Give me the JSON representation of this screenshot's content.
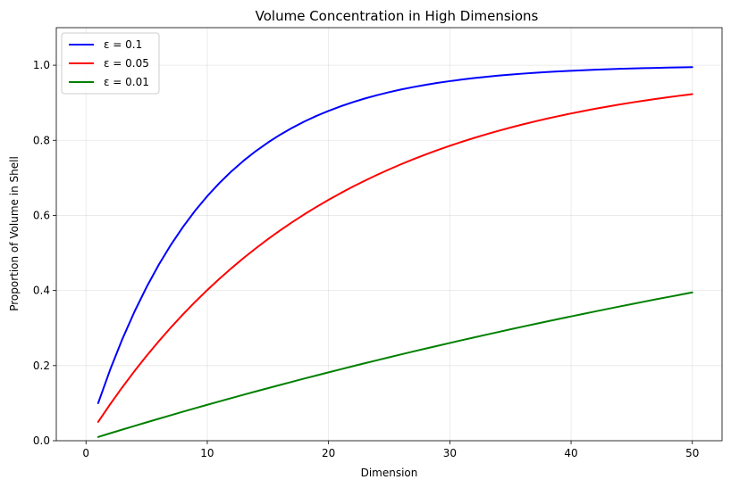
{
  "chart_data": {
    "type": "line",
    "title": "Volume Concentration in High Dimensions",
    "xlabel": "Dimension",
    "ylabel": "Proportion of Volume in Shell",
    "xlim": [
      -2.45,
      52.45
    ],
    "ylim": [
      0,
      1.1
    ],
    "x_ticks": [
      0,
      10,
      20,
      30,
      40,
      50
    ],
    "y_ticks": [
      0.0,
      0.2,
      0.4,
      0.6,
      0.8,
      1.0
    ],
    "x_tick_labels": [
      "0",
      "10",
      "20",
      "30",
      "40",
      "50"
    ],
    "y_tick_labels": [
      "0.0",
      "0.2",
      "0.4",
      "0.6",
      "0.8",
      "1.0"
    ],
    "grid": true,
    "legend_position": "top-left",
    "x": [
      1,
      2,
      3,
      4,
      5,
      6,
      7,
      8,
      9,
      10,
      11,
      12,
      13,
      14,
      15,
      16,
      17,
      18,
      19,
      20,
      21,
      22,
      23,
      24,
      25,
      26,
      27,
      28,
      29,
      30,
      31,
      32,
      33,
      34,
      35,
      36,
      37,
      38,
      39,
      40,
      41,
      42,
      43,
      44,
      45,
      46,
      47,
      48,
      49,
      50
    ],
    "series": [
      {
        "name": "ε = 0.1",
        "color": "#0000ff",
        "values": [
          0.1,
          0.19,
          0.271,
          0.3439,
          0.4095,
          0.4686,
          0.5217,
          0.5695,
          0.6126,
          0.6513,
          0.6862,
          0.7176,
          0.7458,
          0.7712,
          0.7941,
          0.8147,
          0.8332,
          0.8499,
          0.8649,
          0.8784,
          0.8906,
          0.9015,
          0.9114,
          0.9202,
          0.9282,
          0.9354,
          0.9419,
          0.9477,
          0.9529,
          0.9576,
          0.9618,
          0.9657,
          0.9691,
          0.9722,
          0.975,
          0.9775,
          0.9797,
          0.9818,
          0.9836,
          0.9852,
          0.9867,
          0.988,
          0.9892,
          0.9903,
          0.9913,
          0.9921,
          0.9929,
          0.9936,
          0.9943,
          0.9948
        ]
      },
      {
        "name": "ε = 0.05",
        "color": "#ff0000",
        "values": [
          0.05,
          0.0975,
          0.1426,
          0.1855,
          0.2262,
          0.2649,
          0.3017,
          0.3366,
          0.3698,
          0.4013,
          0.4312,
          0.4596,
          0.4867,
          0.5123,
          0.5367,
          0.5599,
          0.5819,
          0.6028,
          0.6226,
          0.6415,
          0.6594,
          0.6765,
          0.6926,
          0.708,
          0.7226,
          0.7365,
          0.7497,
          0.7622,
          0.7741,
          0.7854,
          0.7961,
          0.8063,
          0.816,
          0.8252,
          0.8339,
          0.8422,
          0.8501,
          0.8576,
          0.8647,
          0.8715,
          0.8779,
          0.884,
          0.8898,
          0.8953,
          0.9006,
          0.9055,
          0.9103,
          0.9147,
          0.919,
          0.9231
        ]
      },
      {
        "name": "ε = 0.01",
        "color": "#008000",
        "values": [
          0.01,
          0.0199,
          0.0297,
          0.0394,
          0.049,
          0.0585,
          0.0679,
          0.0773,
          0.0865,
          0.0956,
          0.1047,
          0.1136,
          0.1225,
          0.1313,
          0.1399,
          0.1485,
          0.157,
          0.1655,
          0.1738,
          0.1821,
          0.1902,
          0.1983,
          0.2064,
          0.2143,
          0.2222,
          0.23,
          0.2377,
          0.2453,
          0.2528,
          0.2603,
          0.2677,
          0.275,
          0.2823,
          0.2894,
          0.2966,
          0.3036,
          0.3106,
          0.3175,
          0.3243,
          0.331,
          0.3377,
          0.3443,
          0.3509,
          0.3574,
          0.3638,
          0.3702,
          0.3765,
          0.3827,
          0.3888,
          0.395
        ]
      }
    ]
  }
}
